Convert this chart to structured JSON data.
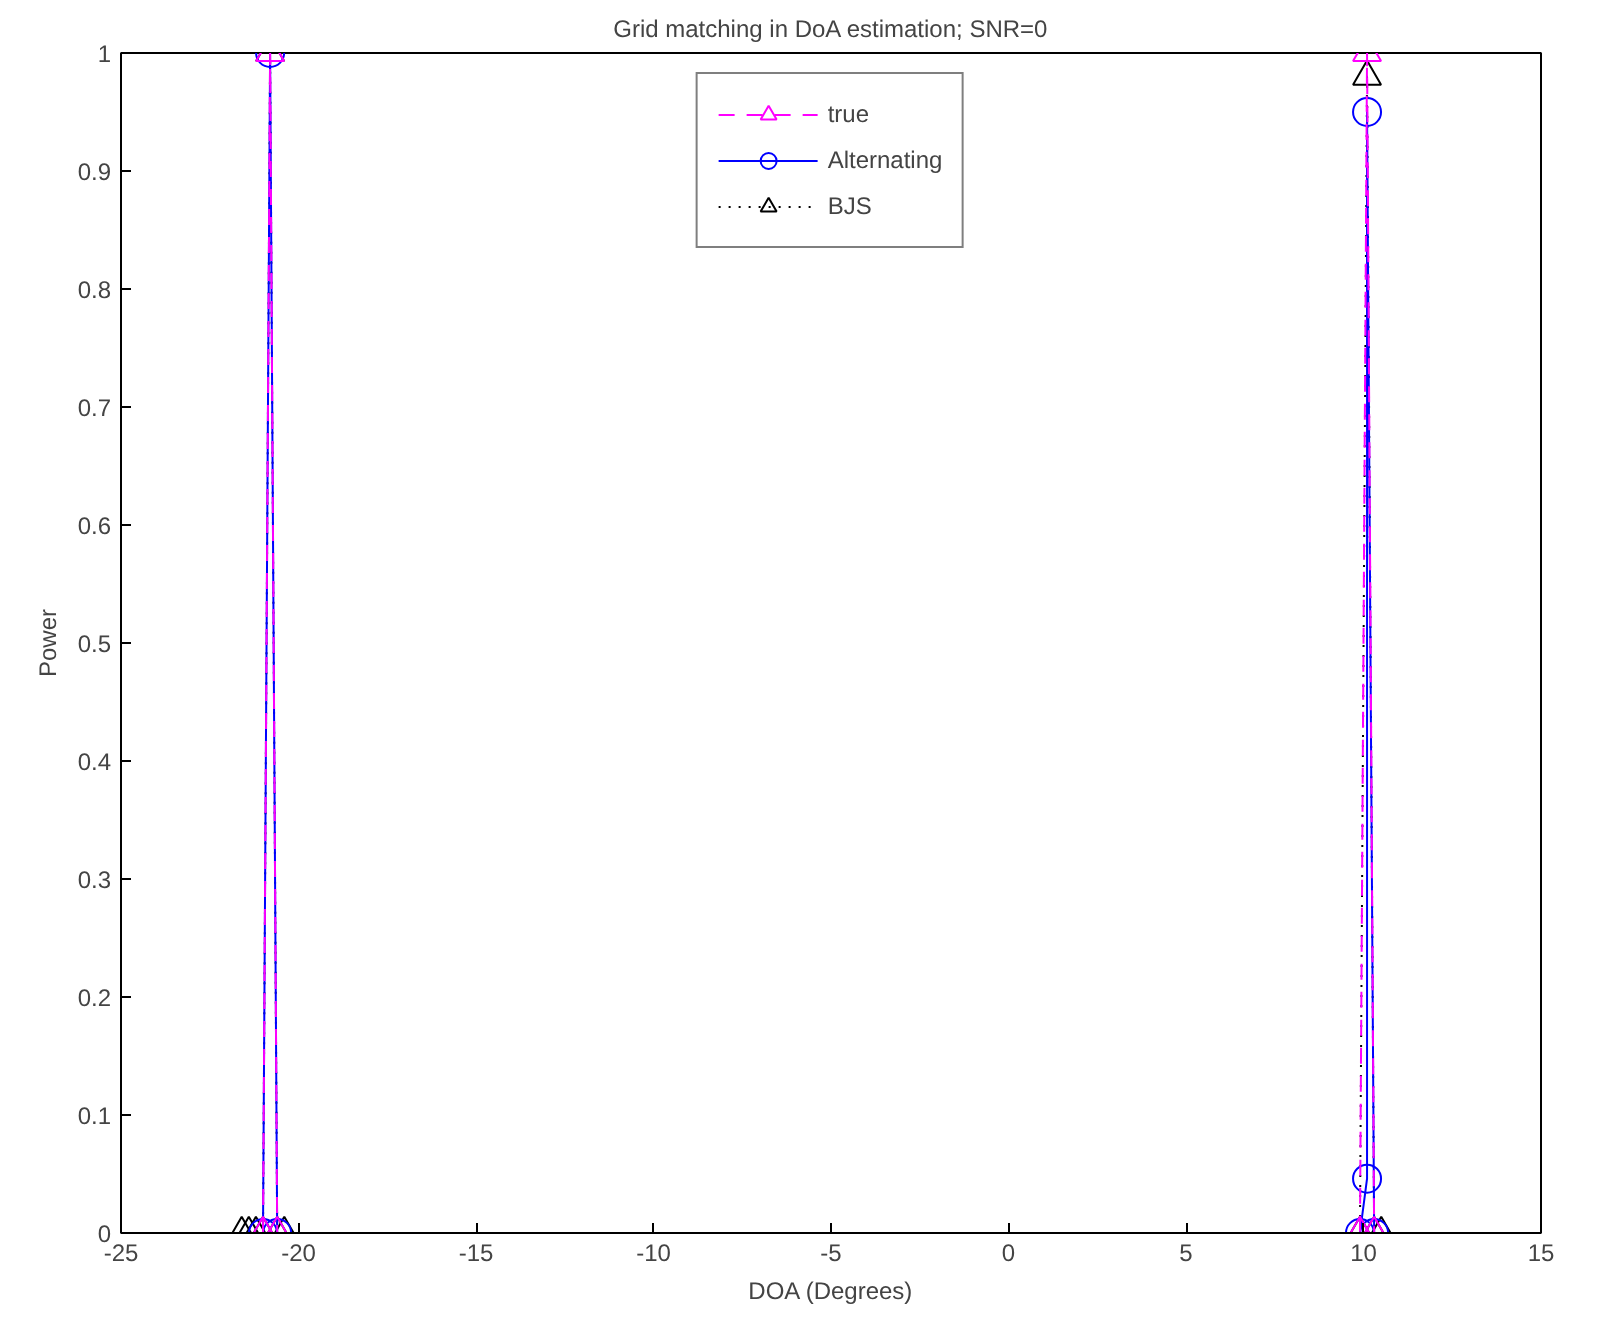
{
  "chart_data": {
    "type": "line",
    "title": "Grid matching in DoA estimation; SNR=0",
    "xlabel": "DOA (Degrees)",
    "ylabel": "Power",
    "xlim": [
      -25,
      15
    ],
    "xticks": [
      -25,
      -20,
      -15,
      -10,
      -5,
      0,
      5,
      10,
      15
    ],
    "ylim": [
      0,
      1
    ],
    "yticks": [
      0,
      0.1,
      0.2,
      0.3,
      0.4,
      0.5,
      0.6,
      0.7,
      0.8,
      0.9,
      1
    ],
    "grid": false,
    "legend": "top",
    "series": [
      {
        "name": "true",
        "color": "#ff00ff",
        "marker": "triangle",
        "line_style": "dashed",
        "x": [
          -21.0,
          -20.8,
          -20.6,
          9.9,
          10.1,
          10.3
        ],
        "values": [
          0,
          1,
          0,
          0,
          1,
          0
        ]
      },
      {
        "name": "Alternating",
        "color": "#0000ff",
        "marker": "circle",
        "line_style": "solid",
        "x": [
          -21.0,
          -20.8,
          -20.6,
          9.9,
          10.1,
          10.1,
          10.3
        ],
        "values": [
          0,
          1,
          0,
          0,
          0.046,
          0.95,
          0
        ]
      },
      {
        "name": "BJS",
        "color": "#000000",
        "marker": "triangle",
        "line_style": "dotted",
        "x": [
          -21.6,
          -21.4,
          -21.2,
          -21.0,
          -20.8,
          -20.6,
          -20.4,
          9.9,
          10.1,
          10.3,
          10.5
        ],
        "values": [
          0,
          0,
          0,
          0,
          1,
          0,
          0,
          0,
          0.98,
          0,
          0
        ]
      }
    ]
  }
}
